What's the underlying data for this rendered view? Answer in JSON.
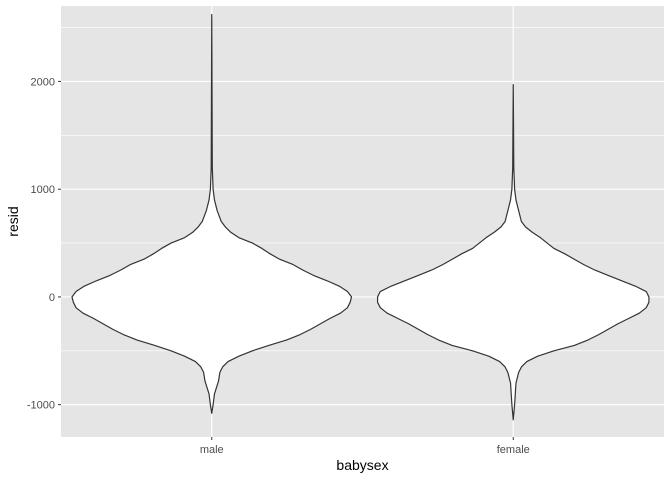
{
  "chart_data": {
    "type": "violin",
    "title": "",
    "xlabel": "babysex",
    "ylabel": "resid",
    "categories": [
      "male",
      "female"
    ],
    "ylim": [
      -1300,
      2700
    ],
    "yticks": [
      -1000,
      0,
      1000,
      2000
    ],
    "ytick_labels": [
      "-1000",
      "0",
      "1000",
      "2000"
    ],
    "grid": true,
    "colors": {
      "panel": "#e5e5e5",
      "grid": "#ffffff",
      "fill": "#ffffff",
      "outline": "#333333"
    },
    "violins": [
      {
        "category": "male",
        "ymin": -1080,
        "ymax": 2620,
        "profile": [
          [
            -1080,
            0
          ],
          [
            -1000,
            0.01
          ],
          [
            -900,
            0.02
          ],
          [
            -820,
            0.04
          ],
          [
            -780,
            0.05
          ],
          [
            -700,
            0.06
          ],
          [
            -650,
            0.08
          ],
          [
            -600,
            0.12
          ],
          [
            -550,
            0.2
          ],
          [
            -500,
            0.3
          ],
          [
            -450,
            0.42
          ],
          [
            -400,
            0.55
          ],
          [
            -350,
            0.65
          ],
          [
            -300,
            0.73
          ],
          [
            -250,
            0.8
          ],
          [
            -200,
            0.87
          ],
          [
            -150,
            0.95
          ],
          [
            -100,
            1.0
          ],
          [
            -50,
            1.02
          ],
          [
            0,
            1.03
          ],
          [
            50,
            1.0
          ],
          [
            100,
            0.94
          ],
          [
            150,
            0.85
          ],
          [
            200,
            0.75
          ],
          [
            250,
            0.67
          ],
          [
            300,
            0.6
          ],
          [
            350,
            0.5
          ],
          [
            400,
            0.43
          ],
          [
            450,
            0.37
          ],
          [
            500,
            0.3
          ],
          [
            550,
            0.2
          ],
          [
            600,
            0.14
          ],
          [
            650,
            0.1
          ],
          [
            700,
            0.07
          ],
          [
            800,
            0.04
          ],
          [
            900,
            0.02
          ],
          [
            1000,
            0.01
          ],
          [
            1200,
            0.004
          ],
          [
            2620,
            0
          ]
        ]
      },
      {
        "category": "female",
        "ymin": -1140,
        "ymax": 1970,
        "profile": [
          [
            -1140,
            0
          ],
          [
            -1000,
            0.01
          ],
          [
            -900,
            0.015
          ],
          [
            -800,
            0.02
          ],
          [
            -700,
            0.04
          ],
          [
            -650,
            0.06
          ],
          [
            -600,
            0.1
          ],
          [
            -550,
            0.18
          ],
          [
            -500,
            0.3
          ],
          [
            -450,
            0.45
          ],
          [
            -400,
            0.55
          ],
          [
            -350,
            0.63
          ],
          [
            -300,
            0.7
          ],
          [
            -250,
            0.77
          ],
          [
            -200,
            0.85
          ],
          [
            -150,
            0.93
          ],
          [
            -100,
            0.98
          ],
          [
            -50,
            1.0
          ],
          [
            0,
            1.0
          ],
          [
            50,
            0.98
          ],
          [
            100,
            0.9
          ],
          [
            150,
            0.8
          ],
          [
            200,
            0.7
          ],
          [
            250,
            0.6
          ],
          [
            300,
            0.52
          ],
          [
            350,
            0.45
          ],
          [
            400,
            0.38
          ],
          [
            450,
            0.3
          ],
          [
            500,
            0.25
          ],
          [
            550,
            0.2
          ],
          [
            600,
            0.14
          ],
          [
            650,
            0.09
          ],
          [
            700,
            0.06
          ],
          [
            800,
            0.04
          ],
          [
            900,
            0.02
          ],
          [
            1000,
            0.01
          ],
          [
            1200,
            0.004
          ],
          [
            1970,
            0
          ]
        ]
      }
    ]
  }
}
